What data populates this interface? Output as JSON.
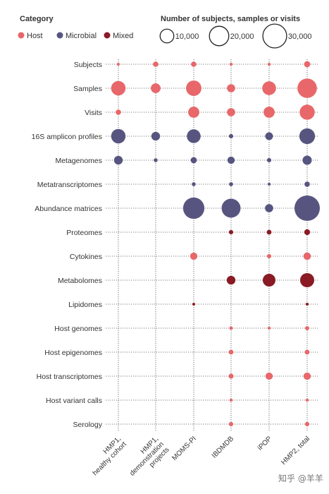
{
  "chart_data": {
    "type": "bubble-matrix",
    "legend": {
      "category_title": "Category",
      "categories": [
        {
          "name": "Host",
          "color": "#e8676a"
        },
        {
          "name": "Microbial",
          "color": "#575580"
        },
        {
          "name": "Mixed",
          "color": "#8a1a24"
        }
      ],
      "size_title": "Number of subjects, samples or visits",
      "size_values": [
        10000,
        20000,
        30000
      ],
      "size_labels": [
        "10,000",
        "20,000",
        "30,000"
      ]
    },
    "columns": [
      [
        "HMP1,",
        "healthy cohort"
      ],
      [
        "HMP1,",
        "demonstration",
        "projects"
      ],
      [
        "MOMS-PI"
      ],
      [
        "IBDMDB"
      ],
      [
        "iPOP"
      ],
      [
        "HMP2, total"
      ]
    ],
    "rows": [
      {
        "label": "Subjects",
        "category": "Host",
        "values": [
          300,
          1500,
          1500,
          130,
          110,
          2000
        ]
      },
      {
        "label": "Samples",
        "category": "Host",
        "values": [
          11000,
          5000,
          12500,
          3500,
          10000,
          20000
        ]
      },
      {
        "label": "Visits",
        "category": "Host",
        "values": [
          1500,
          null,
          6500,
          3500,
          6500,
          12000
        ]
      },
      {
        "label": "16S amplicon profiles",
        "category": "Microbial",
        "values": [
          11000,
          4000,
          10000,
          1000,
          3200,
          13000
        ]
      },
      {
        "label": "Metagenomes",
        "category": "Microbial",
        "values": [
          4000,
          800,
          2000,
          2800,
          1000,
          4500
        ]
      },
      {
        "label": "Metatranscriptomes",
        "category": "Microbial",
        "values": [
          null,
          null,
          800,
          850,
          400,
          1500
        ]
      },
      {
        "label": "Abundance matrices",
        "category": "Microbial",
        "values": [
          null,
          null,
          24000,
          19000,
          3500,
          34000
        ]
      },
      {
        "label": "Proteomes",
        "category": "Mixed",
        "values": [
          null,
          null,
          null,
          1000,
          1200,
          1800
        ]
      },
      {
        "label": "Cytokines",
        "category": "Host",
        "values": [
          null,
          null,
          2800,
          null,
          1000,
          2900
        ]
      },
      {
        "label": "Metabolomes",
        "category": "Mixed",
        "values": [
          null,
          null,
          null,
          4000,
          8500,
          10500
        ]
      },
      {
        "label": "Lipidomes",
        "category": "Mixed",
        "values": [
          null,
          null,
          300,
          null,
          null,
          300
        ]
      },
      {
        "label": "Host genomes",
        "category": "Host",
        "values": [
          null,
          null,
          null,
          600,
          250,
          900
        ]
      },
      {
        "label": "Host epigenomes",
        "category": "Host",
        "values": [
          null,
          null,
          null,
          1200,
          null,
          1200
        ]
      },
      {
        "label": "Host transcriptomes",
        "category": "Host",
        "values": [
          null,
          null,
          null,
          1300,
          2700,
          2800
        ]
      },
      {
        "label": "Host variant calls",
        "category": "Host",
        "values": [
          null,
          null,
          null,
          500,
          null,
          500
        ]
      },
      {
        "label": "Serology",
        "category": "Host",
        "values": [
          null,
          null,
          null,
          1000,
          null,
          1000
        ]
      }
    ]
  },
  "watermark": "知乎 @羊羊"
}
